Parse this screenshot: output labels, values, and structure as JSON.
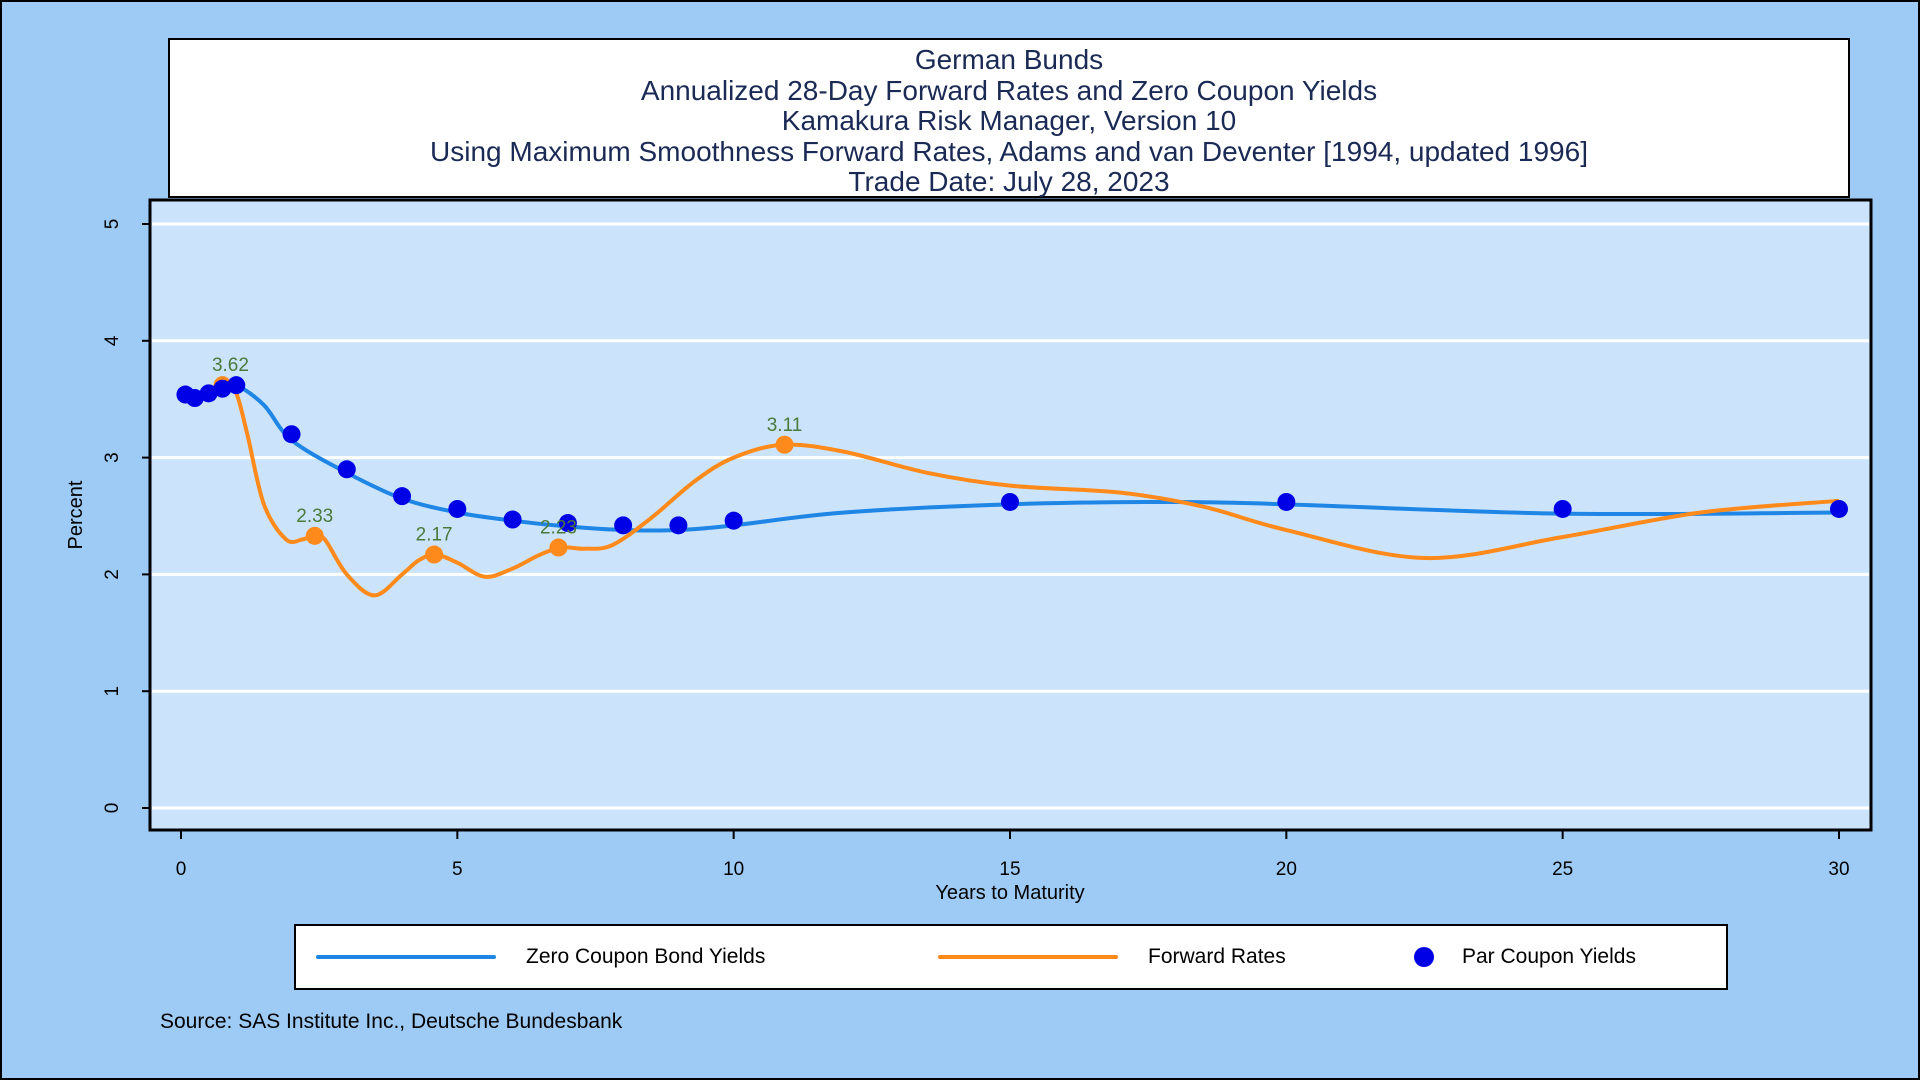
{
  "title_lines": [
    "German Bunds",
    "Annualized 28-Day Forward Rates and Zero Coupon Yields",
    "Kamakura Risk Manager, Version 10",
    "Using Maximum Smoothness Forward Rates, Adams and van Deventer [1994, updated 1996]",
    "Trade Date: July 28, 2023"
  ],
  "source": "Source: SAS Institute Inc., Deutsche Bundesbank",
  "legend": {
    "zero_label": "Zero Coupon Bond Yields",
    "forward_label": "Forward Rates",
    "par_label": "Par Coupon Yields"
  },
  "colors": {
    "zero": "#1f86e6",
    "forward": "#ff8a1c",
    "par": "#0000e6",
    "plot_bg": "#cce4fb",
    "annotation": "#4a7a3a"
  },
  "chart_data": {
    "type": "line",
    "xlabel": "Years to Maturity",
    "ylabel": "Percent",
    "xlim": [
      0,
      30
    ],
    "ylim": [
      0,
      5
    ],
    "xticks": [
      0,
      5,
      10,
      15,
      20,
      25,
      30
    ],
    "yticks": [
      0,
      1,
      2,
      3,
      4,
      5
    ],
    "grid": true,
    "series": [
      {
        "name": "Zero Coupon Bond Yields",
        "kind": "line",
        "x": [
          0.08,
          0.25,
          0.5,
          0.75,
          1,
          1.5,
          2,
          3,
          4,
          5,
          6,
          7,
          8,
          9,
          10,
          12,
          15,
          18,
          20,
          25,
          30
        ],
        "y": [
          3.54,
          3.52,
          3.56,
          3.6,
          3.62,
          3.45,
          3.15,
          2.87,
          2.65,
          2.53,
          2.46,
          2.41,
          2.38,
          2.38,
          2.42,
          2.53,
          2.6,
          2.62,
          2.6,
          2.52,
          2.53
        ]
      },
      {
        "name": "Forward Rates",
        "kind": "line",
        "x": [
          0.08,
          0.5,
          0.8,
          1.0,
          1.2,
          1.5,
          1.9,
          2.2,
          2.4,
          2.6,
          3.0,
          3.5,
          4.0,
          4.3,
          4.6,
          5.0,
          5.5,
          6.0,
          6.5,
          6.9,
          7.3,
          7.8,
          8.5,
          9.3,
          10.0,
          10.9,
          12.0,
          13.5,
          15.0,
          17.0,
          18.5,
          20.0,
          22.5,
          25.0,
          27.5,
          30.0
        ],
        "y": [
          3.54,
          3.56,
          3.62,
          3.55,
          3.2,
          2.6,
          2.3,
          2.3,
          2.33,
          2.3,
          2.0,
          1.82,
          2.0,
          2.12,
          2.17,
          2.1,
          1.98,
          2.05,
          2.17,
          2.23,
          2.22,
          2.25,
          2.48,
          2.8,
          3.0,
          3.11,
          3.05,
          2.87,
          2.76,
          2.7,
          2.58,
          2.38,
          2.14,
          2.32,
          2.53,
          2.63
        ]
      },
      {
        "name": "Par Coupon Yields",
        "kind": "scatter",
        "x": [
          0.08,
          0.25,
          0.5,
          0.75,
          1,
          2,
          3,
          4,
          5,
          6,
          7,
          8,
          9,
          10,
          15,
          20,
          25,
          30
        ],
        "y": [
          3.54,
          3.51,
          3.55,
          3.59,
          3.62,
          3.2,
          2.9,
          2.67,
          2.56,
          2.47,
          2.44,
          2.42,
          2.42,
          2.46,
          2.62,
          2.62,
          2.56,
          2.56
        ]
      }
    ],
    "forward_markers": [
      {
        "x": 0.75,
        "y": 3.62,
        "label": "3.62"
      },
      {
        "x": 2.42,
        "y": 2.33,
        "label": "2.33"
      },
      {
        "x": 4.58,
        "y": 2.17,
        "label": "2.17"
      },
      {
        "x": 6.83,
        "y": 2.23,
        "label": "2.23"
      },
      {
        "x": 10.92,
        "y": 3.11,
        "label": "3.11"
      }
    ]
  }
}
